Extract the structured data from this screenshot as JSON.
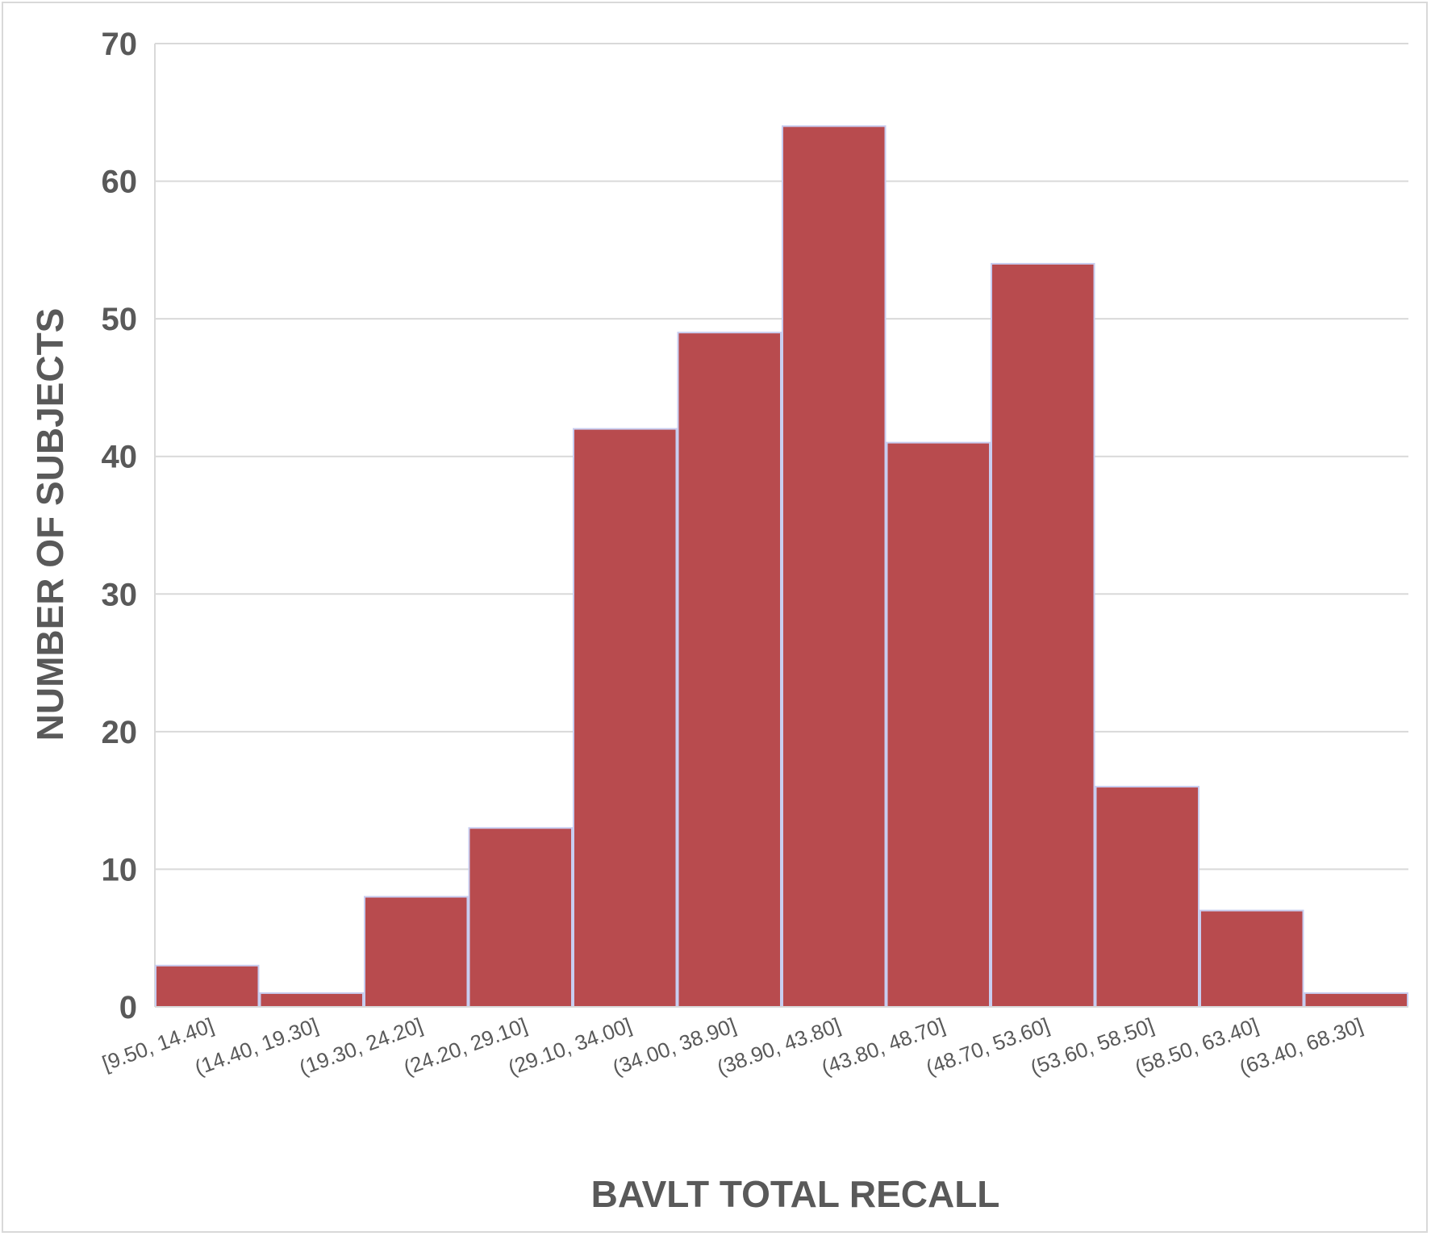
{
  "chart_data": {
    "type": "bar",
    "title": "",
    "xlabel": "BAVLT TOTAL RECALL",
    "ylabel": "NUMBER OF SUBJECTS",
    "categories": [
      "[9.50, 14.40]",
      "(14.40, 19.30]",
      "(19.30, 24.20]",
      "(24.20, 29.10]",
      "(29.10, 34.00]",
      "(34.00, 38.90]",
      "(38.90, 43.80]",
      "(43.80, 48.70]",
      "(48.70, 53.60]",
      "(53.60, 58.50]",
      "(58.50, 63.40]",
      "(63.40, 68.30]"
    ],
    "values": [
      3,
      1,
      8,
      13,
      42,
      49,
      64,
      41,
      54,
      16,
      7,
      1
    ],
    "ylim": [
      0,
      70
    ],
    "yticks": [
      0,
      10,
      20,
      30,
      40,
      50,
      60,
      70
    ],
    "grid": true,
    "legend": "none",
    "colors": {
      "bar": "#b84b4e",
      "bar_edge": "#c8cdf0",
      "grid": "#d9d9d9",
      "text": "#595959"
    }
  }
}
